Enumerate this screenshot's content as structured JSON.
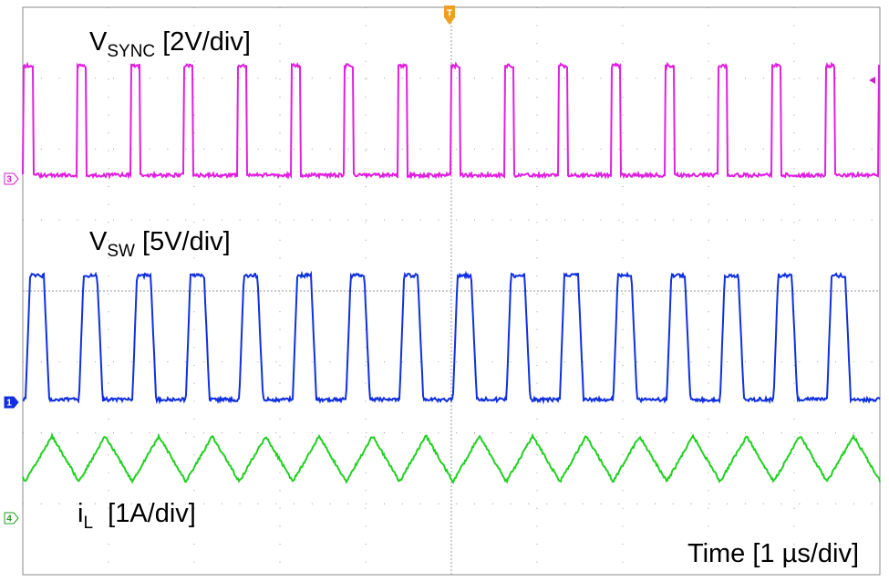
{
  "labels": {
    "vsync": {
      "main": "V",
      "sub": "SYNC",
      "rest": " [2V/div]"
    },
    "vsw": {
      "main": "V",
      "sub": "SW",
      "rest": " [5V/div]"
    },
    "il": {
      "main": "i",
      "sub": "L",
      "rest": "  [1A/div]"
    },
    "time": "Time [1 µs/div]"
  },
  "markers": {
    "ch3": "3",
    "ch1": "1",
    "ch4": "4",
    "trigger": "T"
  }
}
